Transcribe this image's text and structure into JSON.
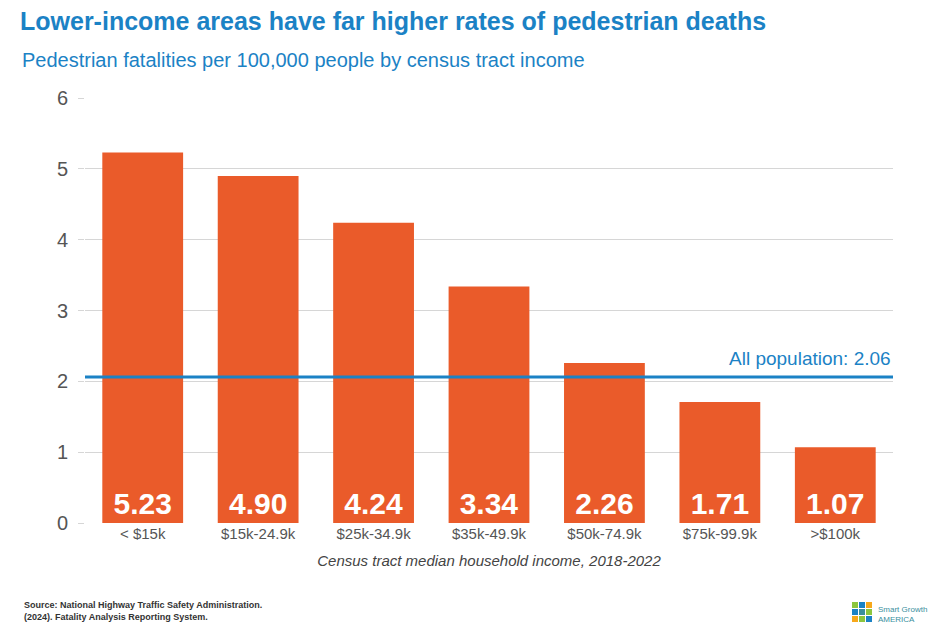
{
  "chart_data": {
    "type": "bar",
    "title": "Lower-income areas have far higher rates of pedestrian deaths",
    "subtitle": "Pedestrian fatalities per 100,000 people by census tract income",
    "x_label": "Census tract median household income, 2018-2022",
    "categories": [
      "< $15k",
      "$15k-24.9k",
      "$25k-34.9k",
      "$35k-49.9k",
      "$50k-74.9k",
      "$75k-99.9k",
      ">$100k"
    ],
    "values": [
      5.23,
      4.9,
      4.24,
      3.34,
      2.26,
      1.71,
      1.07
    ],
    "value_labels": [
      "5.23",
      "4.90",
      "4.24",
      "3.34",
      "2.26",
      "1.71",
      "1.07"
    ],
    "color": "#ea5b2a",
    "ylim": [
      0,
      6
    ],
    "yticks": [
      0,
      1,
      2,
      3,
      4,
      5,
      6
    ],
    "grid": true,
    "data_labels": true,
    "reference_line": {
      "value": 2.06,
      "label": "All population: 2.06"
    },
    "source": [
      "Source: National Highway Traffic Safety Administration.",
      "(2024). Fatality Analysis Reporting System."
    ],
    "logo": [
      "Smart Growth",
      "AMERICA"
    ]
  }
}
